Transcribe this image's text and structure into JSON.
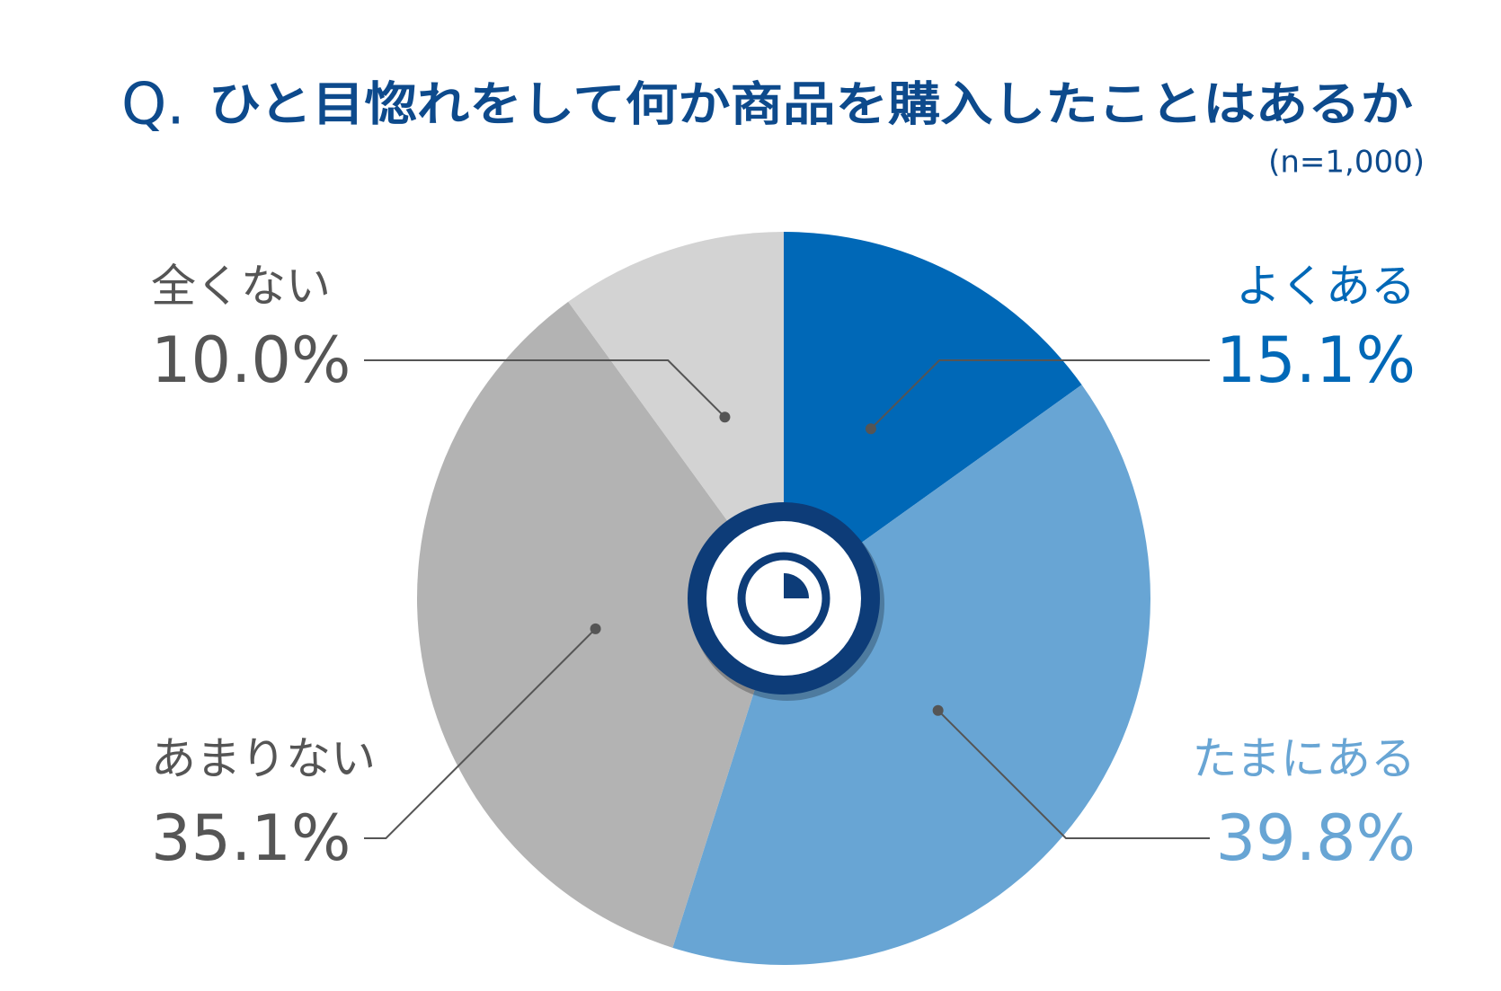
{
  "chart_data": {
    "type": "pie",
    "title_prefix": "Q.",
    "title": "ひと目惚れをして何か商品を購入したことはあるか",
    "subtitle": "(n=1,000)",
    "categories": [
      "よくある",
      "たまにある",
      "あまりない",
      "全くない"
    ],
    "values": [
      15.1,
      39.8,
      35.1,
      10.0
    ],
    "value_labels": [
      "15.1%",
      "39.8%",
      "35.1%",
      "10.0%"
    ],
    "colors": [
      "#0068b7",
      "#68a5d4",
      "#b3b3b3",
      "#d3d3d3"
    ],
    "label_colors": [
      "#0068b7",
      "#68a5d4",
      "#555555",
      "#555555"
    ]
  }
}
